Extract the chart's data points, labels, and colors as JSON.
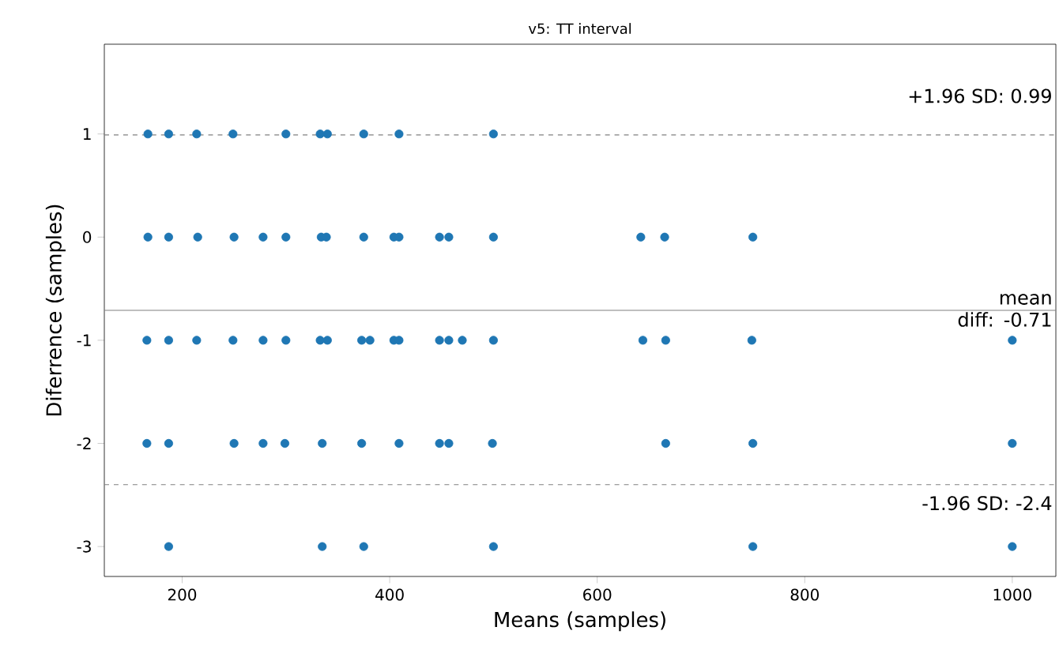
{
  "chart_data": {
    "type": "scatter",
    "title": "v5: TT interval",
    "xlabel": "Means (samples)",
    "ylabel": "Diferrence (samples)",
    "xlim": [
      125,
      1042
    ],
    "ylim": [
      -3.29,
      1.87
    ],
    "xticks": [
      200,
      400,
      600,
      800,
      1000
    ],
    "yticks": [
      -3,
      -2,
      -1,
      0,
      1
    ],
    "marker": "circle",
    "grid": false,
    "series": [
      {
        "color": "#1f77b4",
        "x": [
          167,
          187,
          214,
          249,
          300,
          333,
          340,
          375,
          409,
          500,
          167,
          187,
          215,
          250,
          278,
          300,
          334,
          339,
          375,
          404,
          409,
          448,
          457,
          500,
          642,
          665,
          750,
          166,
          187,
          214,
          249,
          278,
          300,
          333,
          340,
          373,
          381,
          404,
          409,
          448,
          457,
          470,
          500,
          644,
          666,
          749,
          1000,
          166,
          187,
          250,
          278,
          299,
          335,
          373,
          409,
          448,
          457,
          499,
          666,
          750,
          1000,
          187,
          335,
          375,
          500,
          750,
          1000
        ],
        "values": [
          1,
          1,
          1,
          1,
          1,
          1,
          1,
          1,
          1,
          1,
          0,
          0,
          0,
          0,
          0,
          0,
          0,
          0,
          0,
          0,
          0,
          0,
          0,
          0,
          0,
          0,
          0,
          -1,
          -1,
          -1,
          -1,
          -1,
          -1,
          -1,
          -1,
          -1,
          -1,
          -1,
          -1,
          -1,
          -1,
          -1,
          -1,
          -1,
          -1,
          -1,
          -1,
          -2,
          -2,
          -2,
          -2,
          -2,
          -2,
          -2,
          -2,
          -2,
          -2,
          -2,
          -2,
          -2,
          -2,
          -3,
          -3,
          -3,
          -3,
          -3,
          -3
        ]
      }
    ],
    "ref_lines": [
      {
        "axis": "y",
        "value": 0.99,
        "label": "+1.96 SD: 0.99",
        "color": "#808080",
        "line_style": "dashed"
      },
      {
        "axis": "y",
        "value": -0.71,
        "label": "mean diff: -0.71",
        "color": "#808080",
        "line_style": "solid"
      },
      {
        "axis": "y",
        "value": -2.4,
        "label": "-1.96 SD: -2.4",
        "color": "#808080",
        "line_style": "dashed"
      }
    ]
  }
}
